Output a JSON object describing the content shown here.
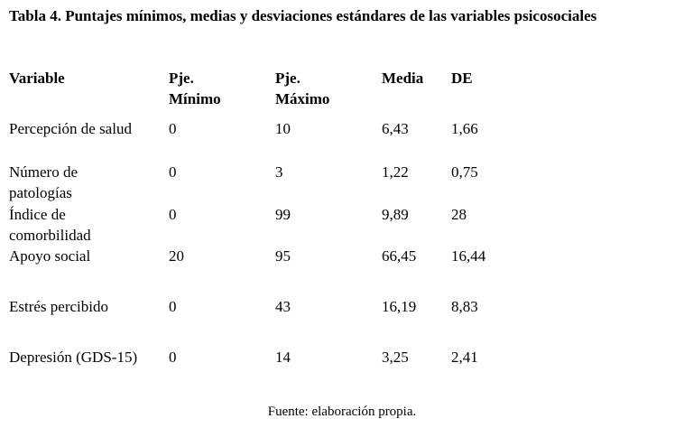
{
  "title": "Tabla 4. Puntajes mínimos, medias y desviaciones estándares de las variables psicosociales",
  "table": {
    "header": [
      "Variable",
      "Pje. Mínimo",
      "Pje. Máximo",
      "Media",
      "DE"
    ],
    "rows": [
      [
        "Percepción de salud",
        "0",
        "10",
        "6,43",
        "1,66"
      ],
      [
        "Número de patologías",
        "0",
        "3",
        "1,22",
        "0,75"
      ],
      [
        "Índice de comorbilidad",
        "0",
        "99",
        "9,89",
        "28"
      ],
      [
        "Apoyo social",
        "20",
        "95",
        "66,45",
        "16,44"
      ],
      [
        "Estrés percibido",
        "0",
        "43",
        "16,19",
        "8,83"
      ],
      [
        "Depresión (GDS-15)",
        "0",
        "14",
        "3,25",
        "2,41"
      ]
    ]
  },
  "source": "Fuente: elaboración propia."
}
